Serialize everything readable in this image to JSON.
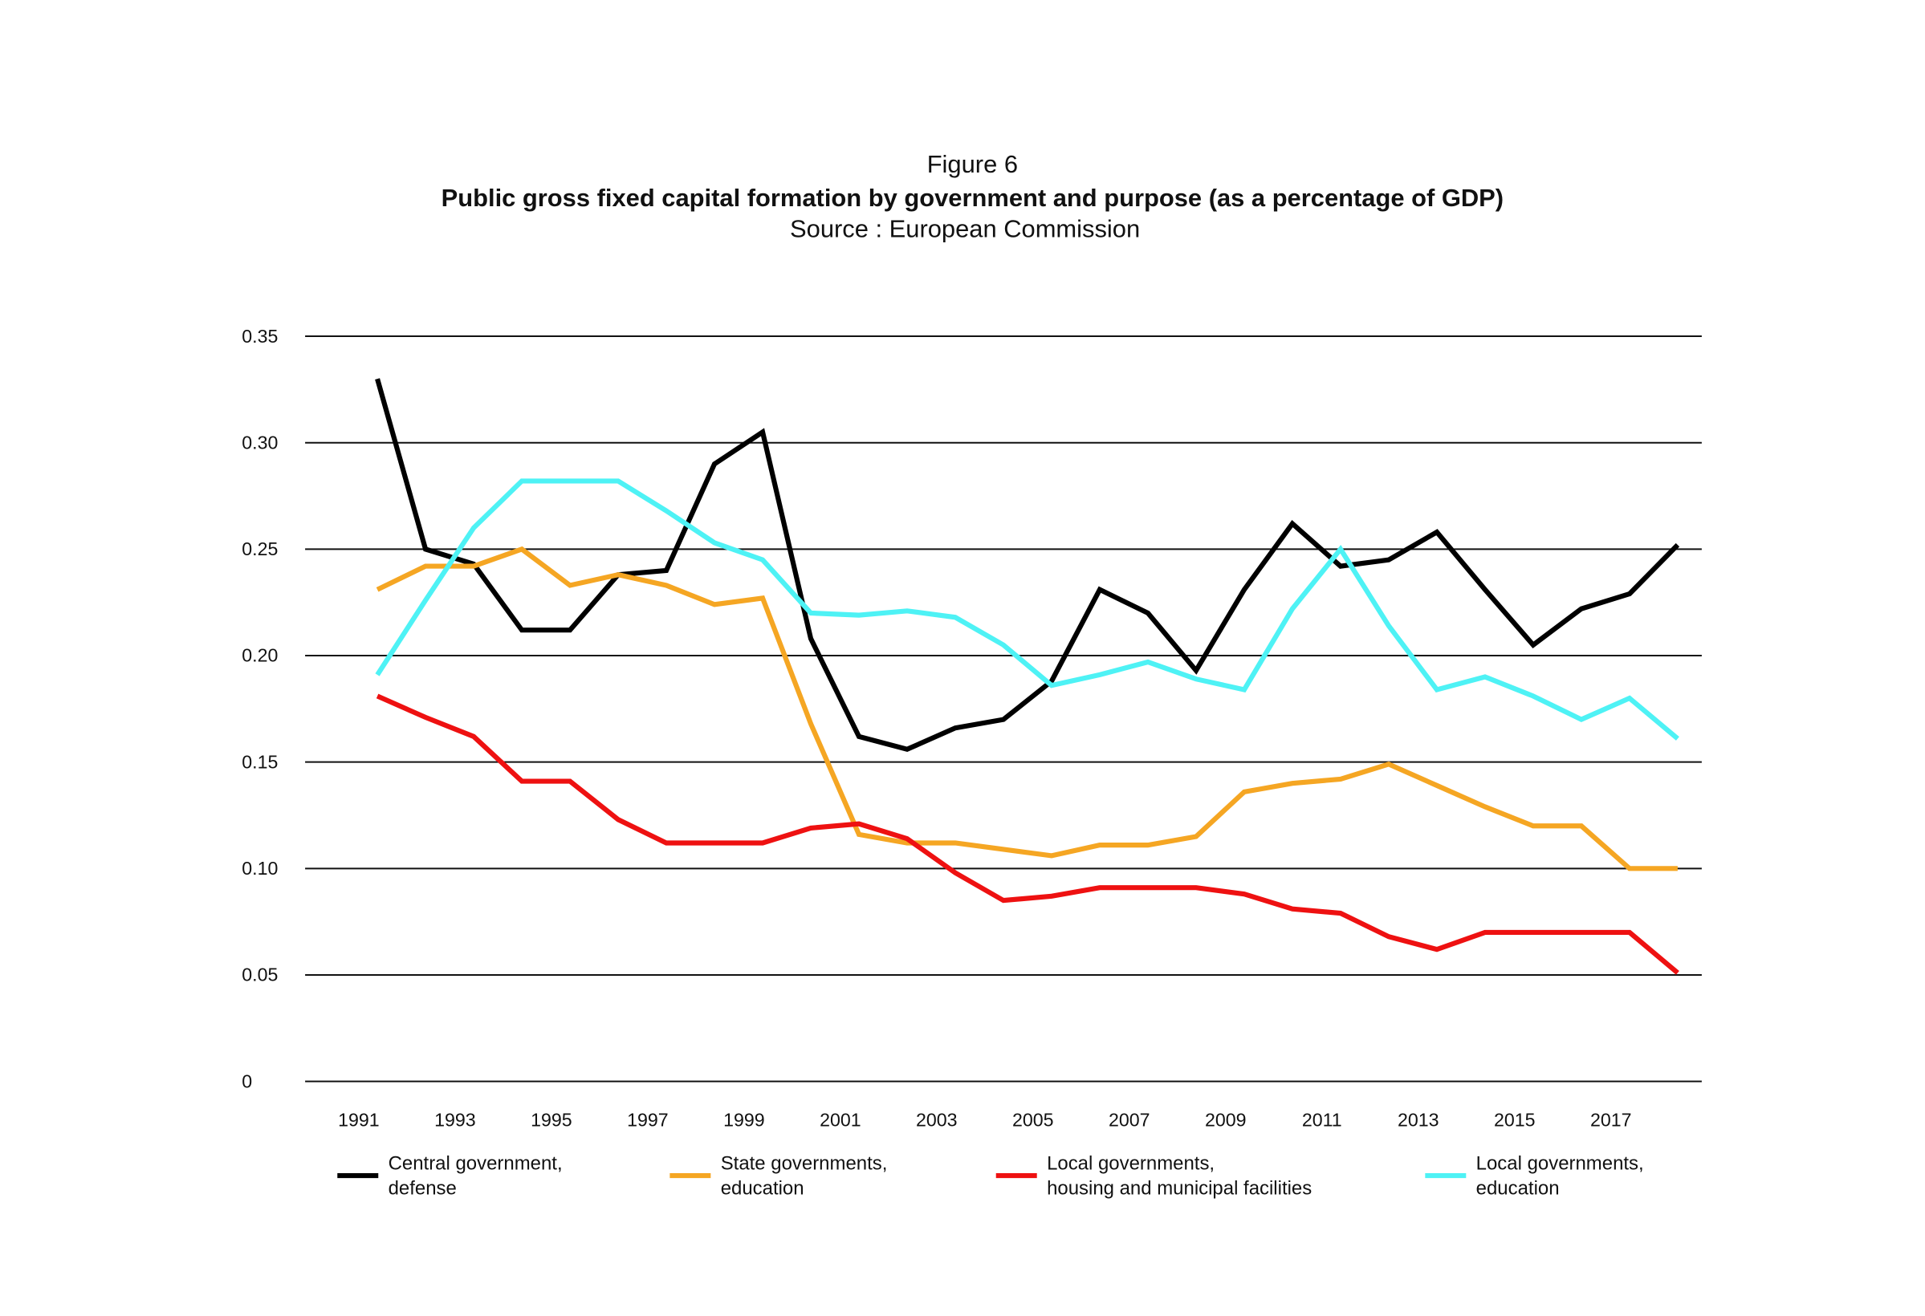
{
  "chart_data": {
    "type": "line",
    "title": "Figure 6",
    "subtitle": "Public gross fixed capital formation by government and purpose (as a percentage of GDP)",
    "source": "Source : European Commission",
    "x": [
      1991,
      1992,
      1993,
      1994,
      1995,
      1996,
      1997,
      1998,
      1999,
      2000,
      2001,
      2002,
      2003,
      2004,
      2005,
      2006,
      2007,
      2008,
      2009,
      2010,
      2011,
      2012,
      2013,
      2014,
      2015,
      2016,
      2017,
      2018
    ],
    "xlim": [
      1989.5,
      2018.5
    ],
    "xticks": [
      1991,
      1993,
      1995,
      1997,
      1999,
      2001,
      2003,
      2005,
      2007,
      2009,
      2011,
      2013,
      2015,
      2017
    ],
    "ylim": [
      0,
      0.35
    ],
    "yticks": [
      0,
      0.05,
      {
        "value": 0.1,
        "label": "0.10"
      },
      0.15,
      {
        "value": 0.2,
        "label": "0.20"
      },
      0.25,
      {
        "value": 0.3,
        "label": "0.30"
      },
      0.35
    ],
    "grid": true,
    "legend": "bottom",
    "series": [
      {
        "name": "Central government,\ndefense",
        "color": "#000000",
        "values": [
          0.33,
          0.25,
          0.243,
          0.212,
          0.212,
          0.238,
          0.24,
          0.29,
          0.305,
          0.208,
          0.162,
          0.156,
          0.166,
          0.17,
          0.188,
          0.231,
          0.22,
          0.193,
          0.231,
          0.262,
          0.242,
          0.245,
          0.258,
          0.231,
          0.205,
          0.222,
          0.229,
          0.252
        ]
      },
      {
        "name": "State governments,\neducation",
        "color": "#f5a623",
        "values": [
          0.231,
          0.242,
          0.242,
          0.25,
          0.233,
          0.238,
          0.233,
          0.224,
          0.227,
          0.168,
          0.116,
          0.112,
          0.112,
          0.109,
          0.106,
          0.111,
          0.111,
          0.115,
          0.136,
          0.14,
          0.142,
          0.149,
          0.139,
          0.129,
          0.12,
          0.12,
          0.1,
          0.1
        ]
      },
      {
        "name": "Local governments,\nhousing and municipal facilities",
        "color": "#ee1111",
        "values": [
          0.181,
          0.171,
          0.162,
          0.141,
          0.141,
          0.123,
          0.112,
          0.112,
          0.112,
          0.119,
          0.121,
          0.114,
          0.098,
          0.085,
          0.087,
          0.091,
          0.091,
          0.091,
          0.088,
          0.081,
          0.079,
          0.068,
          0.062,
          0.07,
          0.07,
          0.07,
          0.07,
          0.051
        ]
      },
      {
        "name": "Local governments,\neducation",
        "color": "#4ef2f5",
        "values": [
          0.191,
          0.226,
          0.26,
          0.282,
          0.282,
          0.282,
          0.268,
          0.253,
          0.245,
          0.22,
          0.219,
          0.221,
          0.218,
          0.205,
          0.186,
          0.191,
          0.197,
          0.189,
          0.184,
          0.222,
          0.25,
          0.214,
          0.184,
          0.19,
          0.181,
          0.17,
          0.18,
          0.161
        ]
      }
    ]
  }
}
